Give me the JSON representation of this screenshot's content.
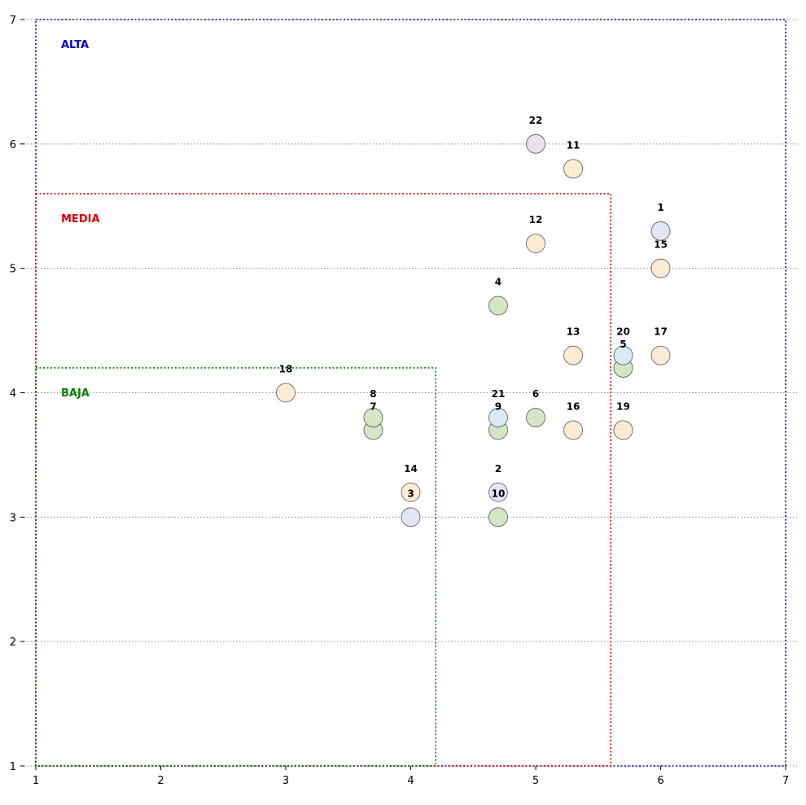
{
  "chart_data": {
    "type": "scatter",
    "title": "",
    "xlabel": "",
    "ylabel": "",
    "xlim": [
      1,
      7
    ],
    "ylim": [
      1,
      7
    ],
    "x_ticks": [
      1,
      2,
      3,
      4,
      5,
      6,
      7
    ],
    "y_ticks": [
      1,
      2,
      3,
      4,
      5,
      6,
      7
    ],
    "grid": "horizontal dotted",
    "colors": {
      "peach": "#fdebd3",
      "green": "#d5e6c5",
      "lavender": "#e3e5f7",
      "lightblue": "#d6ebf3",
      "pink": "#eedff0",
      "grid": "#888888",
      "alta": "#0000cc",
      "media": "#dd0000",
      "baja": "#008000"
    },
    "zones": [
      {
        "label": "ALTA",
        "color": "alta",
        "x": [
          1,
          7
        ],
        "y": [
          1,
          7
        ]
      },
      {
        "label": "MEDIA",
        "color": "media",
        "x": [
          1,
          5.6
        ],
        "y": [
          1,
          5.6
        ]
      },
      {
        "label": "BAJA",
        "color": "baja",
        "x": [
          1,
          4.2
        ],
        "y": [
          1,
          4.2
        ]
      }
    ],
    "points": [
      {
        "label": "1",
        "x": 6.0,
        "y": 5.3,
        "color": "lavender"
      },
      {
        "label": "2",
        "x": 4.7,
        "y": 3.2,
        "color": "lavender"
      },
      {
        "label": "3",
        "x": 4.0,
        "y": 3.0,
        "color": "lavender"
      },
      {
        "label": "4",
        "x": 4.7,
        "y": 4.7,
        "color": "green"
      },
      {
        "label": "5",
        "x": 5.7,
        "y": 4.2,
        "color": "green"
      },
      {
        "label": "6",
        "x": 5.0,
        "y": 3.8,
        "color": "green"
      },
      {
        "label": "7",
        "x": 3.7,
        "y": 3.7,
        "color": "green"
      },
      {
        "label": "8",
        "x": 3.7,
        "y": 3.8,
        "color": "green"
      },
      {
        "label": "9",
        "x": 4.7,
        "y": 3.7,
        "color": "green"
      },
      {
        "label": "10",
        "x": 4.7,
        "y": 3.0,
        "color": "green"
      },
      {
        "label": "11",
        "x": 5.3,
        "y": 5.8,
        "color": "peach"
      },
      {
        "label": "12",
        "x": 5.0,
        "y": 5.2,
        "color": "peach"
      },
      {
        "label": "13",
        "x": 5.3,
        "y": 4.3,
        "color": "peach"
      },
      {
        "label": "14",
        "x": 4.0,
        "y": 3.2,
        "color": "peach"
      },
      {
        "label": "15",
        "x": 6.0,
        "y": 5.0,
        "color": "peach"
      },
      {
        "label": "16",
        "x": 5.3,
        "y": 3.7,
        "color": "peach"
      },
      {
        "label": "17",
        "x": 6.0,
        "y": 4.3,
        "color": "peach"
      },
      {
        "label": "18",
        "x": 3.0,
        "y": 4.0,
        "color": "peach"
      },
      {
        "label": "19",
        "x": 5.7,
        "y": 3.7,
        "color": "peach"
      },
      {
        "label": "20",
        "x": 5.7,
        "y": 4.3,
        "color": "lightblue"
      },
      {
        "label": "21",
        "x": 4.7,
        "y": 3.8,
        "color": "lightblue"
      },
      {
        "label": "22",
        "x": 5.0,
        "y": 6.0,
        "color": "pink"
      }
    ]
  }
}
